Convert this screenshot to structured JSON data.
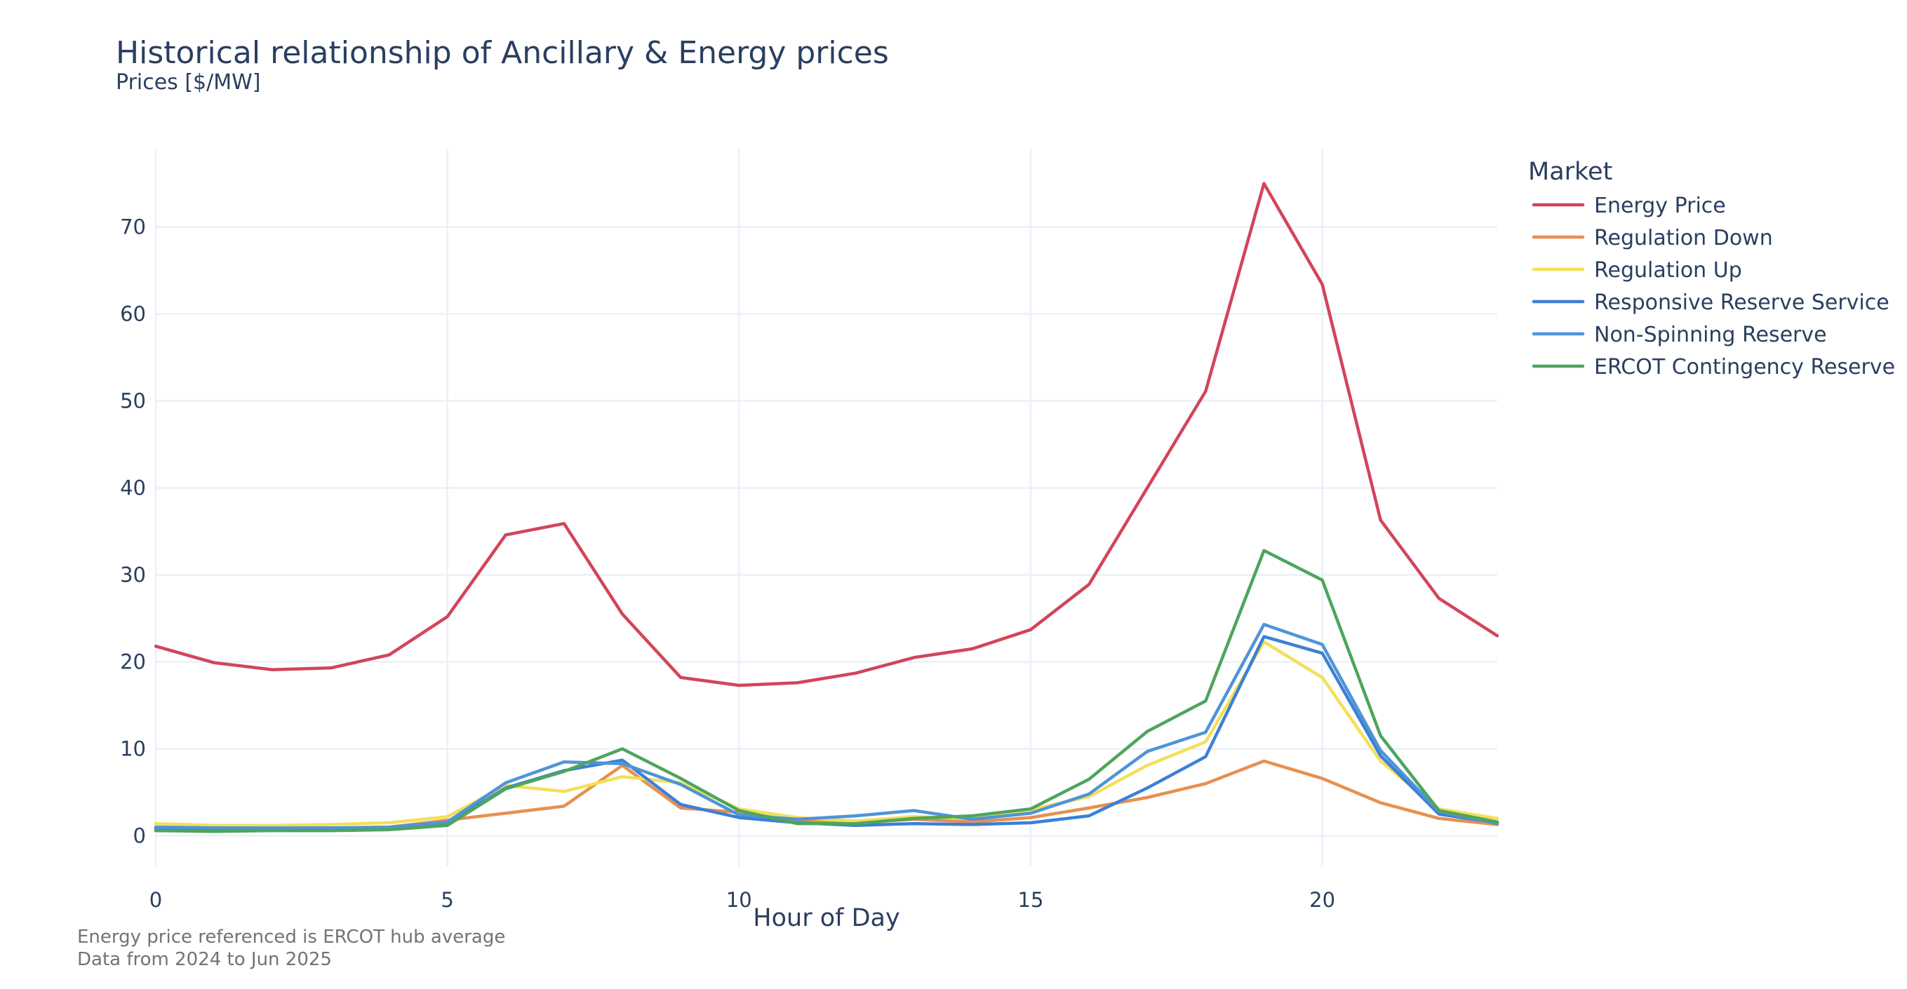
{
  "chart_data": {
    "type": "line",
    "title": "Historical relationship of Ancillary & Energy prices",
    "subtitle": "Prices [$/MW]",
    "xlabel": "Hour of Day",
    "ylabel": "",
    "x": [
      0,
      1,
      2,
      3,
      4,
      5,
      6,
      7,
      8,
      9,
      10,
      11,
      12,
      13,
      14,
      15,
      16,
      17,
      18,
      19,
      20,
      21,
      22,
      23
    ],
    "xlim": [
      0,
      23
    ],
    "ylim": [
      -3.5,
      79
    ],
    "x_ticks": [
      0,
      5,
      10,
      15,
      20
    ],
    "y_ticks": [
      0,
      10,
      20,
      30,
      40,
      50,
      60,
      70
    ],
    "grid": true,
    "legend": {
      "title": "Market",
      "placement": "right"
    },
    "notes": [
      "Energy price referenced is ERCOT hub average",
      "Data from 2024 to Jun 2025"
    ],
    "series": [
      {
        "name": "Energy Price",
        "color": "#d2455a",
        "values": [
          21.8,
          19.9,
          19.1,
          19.3,
          20.8,
          25.2,
          34.6,
          35.9,
          25.5,
          18.2,
          17.3,
          17.6,
          18.7,
          20.5,
          21.5,
          23.7,
          28.9,
          40.0,
          51.1,
          75.0,
          63.4,
          36.3,
          27.3,
          23.0
        ]
      },
      {
        "name": "Regulation Down",
        "color": "#e69050",
        "values": [
          0.9,
          0.9,
          0.9,
          0.9,
          1.0,
          1.8,
          2.6,
          3.4,
          8.1,
          3.2,
          2.7,
          1.7,
          1.5,
          1.9,
          1.6,
          2.1,
          3.2,
          4.4,
          6.0,
          8.6,
          6.6,
          3.8,
          2.0,
          1.3
        ]
      },
      {
        "name": "Regulation Up",
        "color": "#f2e05a",
        "values": [
          1.4,
          1.2,
          1.2,
          1.3,
          1.5,
          2.2,
          5.8,
          5.1,
          6.8,
          6.1,
          3.1,
          2.1,
          1.7,
          2.2,
          2.0,
          3.0,
          4.5,
          8.1,
          10.8,
          22.3,
          18.2,
          8.6,
          3.1,
          2.0
        ]
      },
      {
        "name": "Responsive Reserve Service",
        "color": "#3c80d6",
        "values": [
          0.8,
          0.8,
          0.7,
          0.7,
          0.8,
          1.4,
          5.5,
          7.5,
          8.7,
          3.6,
          2.1,
          1.5,
          1.2,
          1.4,
          1.3,
          1.5,
          2.3,
          5.5,
          9.1,
          22.9,
          21.0,
          9.2,
          2.5,
          1.5
        ]
      },
      {
        "name": "Non-Spinning Reserve",
        "color": "#4f94d8",
        "values": [
          1.0,
          0.9,
          0.9,
          0.9,
          1.0,
          1.6,
          6.1,
          8.5,
          8.3,
          5.9,
          2.4,
          1.9,
          2.3,
          2.9,
          1.9,
          2.6,
          4.8,
          9.7,
          11.9,
          24.3,
          22.0,
          9.8,
          2.8,
          1.4
        ]
      },
      {
        "name": "ERCOT Contingency Reserve",
        "color": "#4ea55c",
        "values": [
          0.6,
          0.5,
          0.6,
          0.6,
          0.7,
          1.2,
          5.4,
          7.4,
          10.0,
          6.6,
          2.9,
          1.4,
          1.4,
          2.0,
          2.3,
          3.1,
          6.5,
          12.0,
          15.5,
          32.8,
          29.4,
          11.5,
          2.9,
          1.6
        ]
      }
    ]
  }
}
